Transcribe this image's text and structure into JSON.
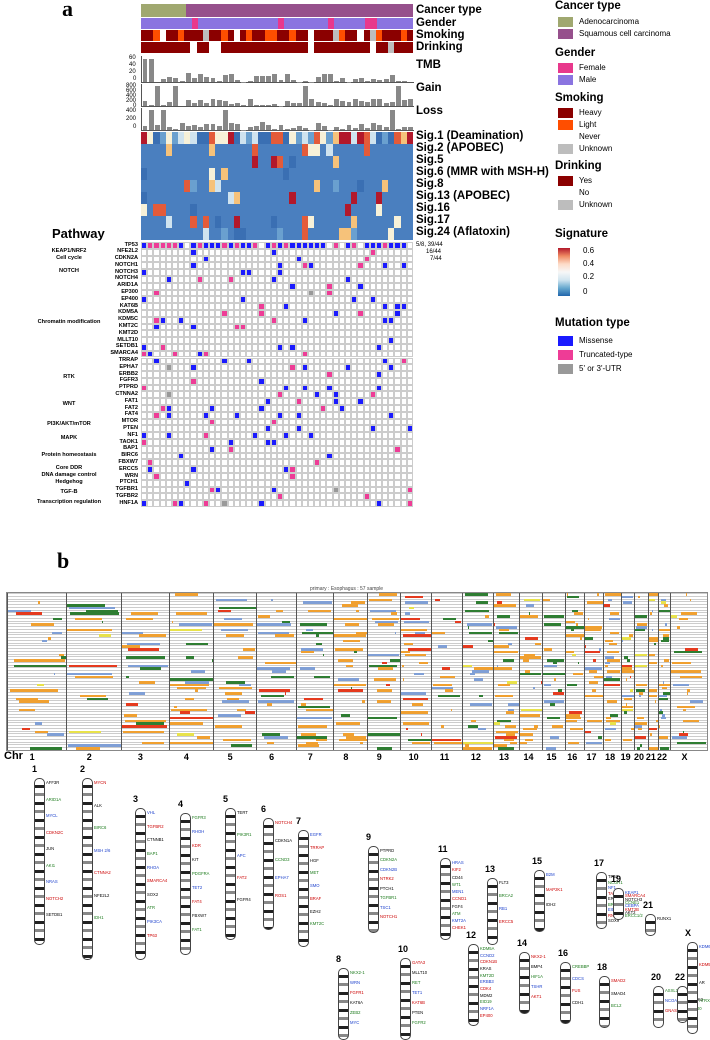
{
  "panel_a": {
    "letter": "a",
    "tracks": {
      "cancer_type": "Cancer type",
      "gender": "Gender",
      "smoking": "Smoking",
      "drinking": "Drinking",
      "tmb": "TMB",
      "gain": "Gain",
      "loss": "Loss"
    },
    "axis_ticks": {
      "tmb": [
        "60",
        "40",
        "20",
        "0"
      ],
      "gain": [
        "800",
        "600",
        "400",
        "200",
        "0"
      ],
      "loss": [
        "400",
        "200",
        "0"
      ]
    },
    "signatures": [
      "Sig.1 (Deamination)",
      "Sig.2 (APOBEC)",
      "Sig.5",
      "Sig.6 (MMR with MSH-H)",
      "Sig.8",
      "Sig.13 (APOBEC)",
      "Sig.16",
      "Sig.17",
      "Sig.24 (Aflatoxin)"
    ],
    "pathway_header": "Pathway",
    "genes": [
      "TP53",
      "NFE2L2",
      "CDKN2A",
      "NOTCH1",
      "NOTCH3",
      "NOTCH4",
      "ARID1A",
      "EP300",
      "EP400",
      "KAT6B",
      "KDM5A",
      "KDM5C",
      "KMT2C",
      "KMT2D",
      "MLLT10",
      "SETDB1",
      "SMARCA4",
      "TRRAP",
      "EPHA7",
      "ERBB2",
      "FGFR3",
      "PTPRD",
      "CTNNA2",
      "FAT1",
      "FAT2",
      "FAT4",
      "MTOR",
      "PTEN",
      "NF1",
      "TAOK1",
      "BAP1",
      "BIRC6",
      "FBXW7",
      "ERCC5",
      "WRN",
      "PTCH1",
      "TGFBR1",
      "TGFBR2",
      "HNF1A"
    ],
    "pathways": [
      {
        "name": "KEAP1/NRF2",
        "row": 1
      },
      {
        "name": "Cell cycle",
        "row": 2
      },
      {
        "name": "NOTCH",
        "row": 4
      },
      {
        "name": "Chromatin modification",
        "row": 11.5
      },
      {
        "name": "RTK",
        "row": 19.5
      },
      {
        "name": "WNT",
        "row": 23.5
      },
      {
        "name": "PI3K/AKT/mTOR",
        "row": 26.5
      },
      {
        "name": "MAPK",
        "row": 28.5
      },
      {
        "name": "Protein homeostasis",
        "row": 31
      },
      {
        "name": "Core DDR",
        "row": 33
      },
      {
        "name": "DNA damage control",
        "row": 34
      },
      {
        "name": "Hedgehog",
        "row": 35
      },
      {
        "name": "TGF-B",
        "row": 36.5
      },
      {
        "name": "Transcription regulation",
        "row": 38
      }
    ],
    "freqs": [
      "5/8, 39/44",
      "16/44",
      "7/44"
    ]
  },
  "legend": {
    "cancer_type": {
      "title": "Cancer type",
      "items": [
        {
          "label": "Adenocarcinoma",
          "color": "#a0a870"
        },
        {
          "label": "Squamous cell carcinoma",
          "color": "#96508c"
        }
      ]
    },
    "gender": {
      "title": "Gender",
      "items": [
        {
          "label": "Female",
          "color": "#e8388c"
        },
        {
          "label": "Male",
          "color": "#8a74e0"
        }
      ]
    },
    "smoking": {
      "title": "Smoking",
      "items": [
        {
          "label": "Heavy",
          "color": "#8b0000"
        },
        {
          "label": "Light",
          "color": "#ff4e00"
        },
        {
          "label": "Never",
          "color": "#ffffff"
        },
        {
          "label": "Unknown",
          "color": "#bdbdbd"
        }
      ]
    },
    "drinking": {
      "title": "Drinking",
      "items": [
        {
          "label": "Yes",
          "color": "#8b0000"
        },
        {
          "label": "No",
          "color": "#ffffff"
        },
        {
          "label": "Unknown",
          "color": "#bdbdbd"
        }
      ]
    },
    "signature": {
      "title": "Signature",
      "ticks": [
        "0.6",
        "0.4",
        "0.2",
        "0"
      ]
    },
    "mutation": {
      "title": "Mutation type",
      "items": [
        {
          "label": "Missense",
          "color": "#1a1aff"
        },
        {
          "label": "Truncated-type",
          "color": "#ee3c96"
        },
        {
          "label": "5' or 3'-UTR",
          "color": "#999999"
        }
      ]
    }
  },
  "panel_b": {
    "letter": "b",
    "heatmap_title": "primary : Esophagus : 57 sample",
    "chr_label": "Chr",
    "chromosomes": [
      "1",
      "2",
      "3",
      "4",
      "5",
      "6",
      "7",
      "8",
      "9",
      "10",
      "11",
      "12",
      "13",
      "14",
      "15",
      "16",
      "17",
      "18",
      "19",
      "20",
      "21",
      "22",
      "X"
    ]
  },
  "ideogram": [
    {
      "chr": "1",
      "genes": [
        "AFF3R",
        "ARID1A",
        "MYCL",
        "CDKN2C",
        "JUN",
        "AKI1",
        "NRAS",
        "NOTCH2",
        "SETDB1"
      ]
    },
    {
      "chr": "2",
      "genes": [
        "MYCN",
        "ALK",
        "BIRC6",
        "MSH 2/6",
        "CTNNA2",
        "NFE2L2",
        "IDH1"
      ]
    },
    {
      "chr": "3",
      "genes": [
        "VHL",
        "TGFBR2",
        "CTNNB1",
        "BAP1",
        "RHOA",
        "SMARCA4",
        "SOX2",
        "ATR",
        "PIK3CA",
        "TP63"
      ]
    },
    {
      "chr": "4",
      "genes": [
        "FGFR3",
        "RHOH",
        "KDR",
        "KIT",
        "PDGFRA",
        "TET2",
        "FAT4",
        "FBXW7",
        "FAT1"
      ]
    },
    {
      "chr": "5",
      "genes": [
        "TERT",
        "PIK3R1",
        "APC",
        "FAT2",
        "FGFR4"
      ]
    },
    {
      "chr": "6",
      "genes": [
        "NOTCH4",
        "CDKN1A",
        "CCND3",
        "EPHA7",
        "ROS1"
      ]
    },
    {
      "chr": "7",
      "genes": [
        "EGFR",
        "TRRAP",
        "HGF",
        "MET",
        "SMO",
        "BRAF",
        "EZH2",
        "KMT2C"
      ]
    },
    {
      "chr": "8",
      "genes": [
        "NKX2-1",
        "WRN",
        "FGFR1",
        "KAT6A",
        "ZEB2",
        "MYC"
      ]
    },
    {
      "chr": "9",
      "genes": [
        "PTPRD",
        "CDKN2A",
        "CDKN2B",
        "NTRK2",
        "PTCH1",
        "TGFBR1",
        "TSC1",
        "NOTCH1"
      ]
    },
    {
      "chr": "10",
      "genes": [
        "GATA3",
        "MLLT10",
        "RET",
        "TET1",
        "KAT6B",
        "PTEN",
        "FGFR2"
      ]
    },
    {
      "chr": "11",
      "genes": [
        "HRAS",
        "KIF2",
        "CD44",
        "WT1",
        "MEN1",
        "CCND1",
        "FGF4",
        "ATM",
        "KMT2A",
        "CHEK1"
      ]
    },
    {
      "chr": "12",
      "genes": [
        "KDM5A",
        "CCND2",
        "CDKN1B",
        "KRAS",
        "KMT2D",
        "ERBB3",
        "CDK4",
        "MDM2",
        "EID19",
        "NRF1A",
        "EP400"
      ]
    },
    {
      "chr": "13",
      "genes": [
        "FLT3",
        "BRCA2",
        "RB1",
        "ERCC5"
      ]
    },
    {
      "chr": "14",
      "genes": [
        "NKX2-1",
        "BMP4",
        "HIF1A",
        "TSHR",
        "AKT1"
      ]
    },
    {
      "chr": "15",
      "genes": [
        "B2M",
        "MAP2K1",
        "IDH2"
      ]
    },
    {
      "chr": "16",
      "genes": [
        "CREBBP",
        "CDCS",
        "FUS",
        "CDH1"
      ]
    },
    {
      "chr": "17",
      "genes": [
        "TP53",
        "NCOR1",
        "NF1",
        "TAOK1",
        "ERBB2",
        "BRCA1",
        "EIDH",
        "RNF43",
        "SOX9"
      ]
    },
    {
      "chr": "18",
      "genes": [
        "SMAD2",
        "SMAD4",
        "BCL2"
      ]
    },
    {
      "chr": "19",
      "genes": [
        "KEAP1",
        "SMARCA4",
        "NOTCH3",
        "CCNE1",
        "CEBPA",
        "KMT2B",
        "AKT2",
        "ERCC1/2"
      ]
    },
    {
      "chr": "20",
      "genes": [
        "ASXL1",
        "NCOA3",
        "GNAS"
      ]
    },
    {
      "chr": "21",
      "genes": [
        "RUNX1"
      ]
    },
    {
      "chr": "22",
      "genes": [
        "NF2",
        "CHEK2",
        "EP300"
      ]
    },
    {
      "chr": "X",
      "genes": [
        "KDM6A",
        "KDM5C",
        "AR",
        "ATRX"
      ]
    }
  ]
}
